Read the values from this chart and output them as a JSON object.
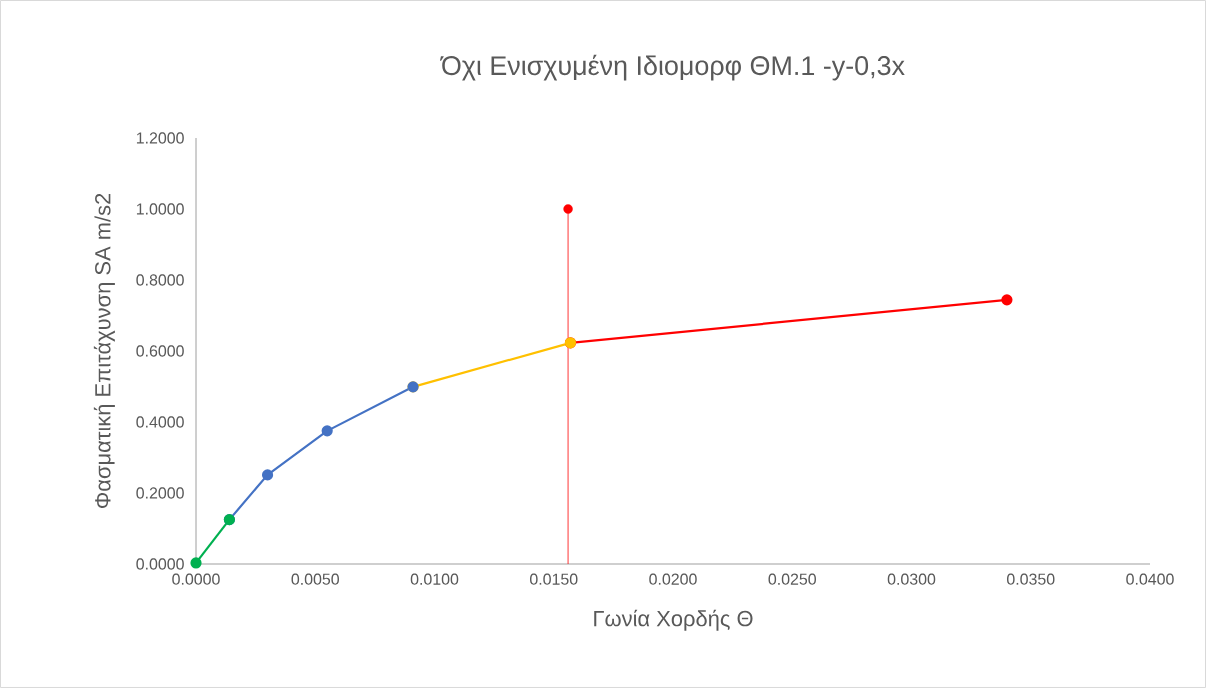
{
  "chart_data": {
    "type": "line",
    "title": "Όχι Ενισχυμένη Ιδιομορφ ΘΜ.1 -y-0,3x",
    "xlabel": "Γωνία Χορδής Θ",
    "ylabel": "Φασματική Επιτάχυνση SA m/s2",
    "xlim": [
      0,
      0.04
    ],
    "ylim": [
      0,
      1.2
    ],
    "xticks": [
      {
        "value": 0,
        "label": "0.0000"
      },
      {
        "value": 0.005,
        "label": "0.0050"
      },
      {
        "value": 0.01,
        "label": "0.0100"
      },
      {
        "value": 0.015,
        "label": "0.0150"
      },
      {
        "value": 0.02,
        "label": "0.0200"
      },
      {
        "value": 0.025,
        "label": "0.0250"
      },
      {
        "value": 0.03,
        "label": "0.0300"
      },
      {
        "value": 0.035,
        "label": "0.0350"
      },
      {
        "value": 0.04,
        "label": "0.0400"
      }
    ],
    "yticks": [
      {
        "value": 0,
        "label": "0.0000"
      },
      {
        "value": 0.2,
        "label": "0.2000"
      },
      {
        "value": 0.4,
        "label": "0.4000"
      },
      {
        "value": 0.6,
        "label": "0.6000"
      },
      {
        "value": 0.8,
        "label": "0.8000"
      },
      {
        "value": 1.0,
        "label": "1.0000"
      },
      {
        "value": 1.2,
        "label": "1.2000"
      }
    ],
    "marker": "circle",
    "grid": false,
    "series": [
      {
        "x": [
          0,
          0.0014
        ],
        "values": [
          0.003,
          0.125
        ],
        "color": "#00b050"
      },
      {
        "x": [
          0.0014,
          0.003,
          0.0055,
          0.0091
        ],
        "values": [
          0.125,
          0.251,
          0.375,
          0.499
        ],
        "color": "#4472c4"
      },
      {
        "x": [
          0.0091,
          0.0157
        ],
        "values": [
          0.499,
          0.623
        ],
        "color": "#ffc000"
      },
      {
        "x": [
          0.0157,
          0.034
        ],
        "values": [
          0.623,
          0.744
        ],
        "color": "#ff0000"
      },
      {
        "x": [
          0.0156,
          0.0156
        ],
        "values": [
          0,
          1.0
        ],
        "color": "#ff0000",
        "marker": "none"
      },
      {
        "type": "scatter",
        "x": [
          0.0156
        ],
        "values": [
          1.0
        ],
        "color": "#ff0000"
      }
    ]
  }
}
